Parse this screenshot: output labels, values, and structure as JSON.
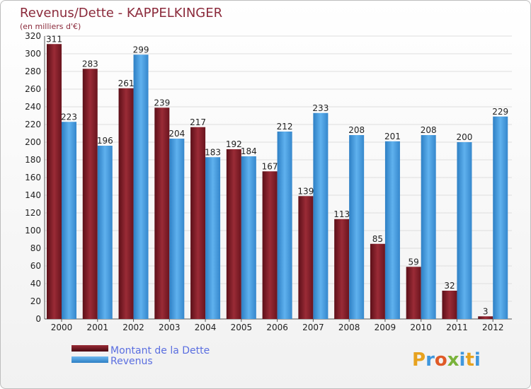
{
  "chart_data": {
    "type": "bar",
    "title": "Revenus/Dette - KAPPELKINGER",
    "subtitle": "(en milliers d'€)",
    "categories": [
      "2000",
      "2001",
      "2002",
      "2003",
      "2004",
      "2005",
      "2006",
      "2007",
      "2008",
      "2009",
      "2010",
      "2011",
      "2012"
    ],
    "series": [
      {
        "name": "Montant de la Dette",
        "color": "#7b1a26",
        "values": [
          311,
          283,
          261,
          239,
          217,
          192,
          167,
          139,
          113,
          85,
          59,
          32,
          3
        ]
      },
      {
        "name": "Revenus",
        "color": "#3f97dd",
        "values": [
          223,
          196,
          299,
          204,
          183,
          184,
          212,
          233,
          208,
          201,
          208,
          200,
          229
        ]
      }
    ],
    "ylim": [
      0,
      320
    ],
    "yticks": [
      0,
      20,
      40,
      60,
      80,
      100,
      120,
      140,
      160,
      180,
      200,
      220,
      240,
      260,
      280,
      300,
      320
    ],
    "grid": true,
    "legend_position": "bottom-left"
  },
  "branding": {
    "logo_text": "Proxiti",
    "logo_colors": [
      "#e7a21f",
      "#3f97dd",
      "#e05a27",
      "#7ab33b",
      "#3f97dd",
      "#e7a21f",
      "#3f97dd"
    ]
  }
}
